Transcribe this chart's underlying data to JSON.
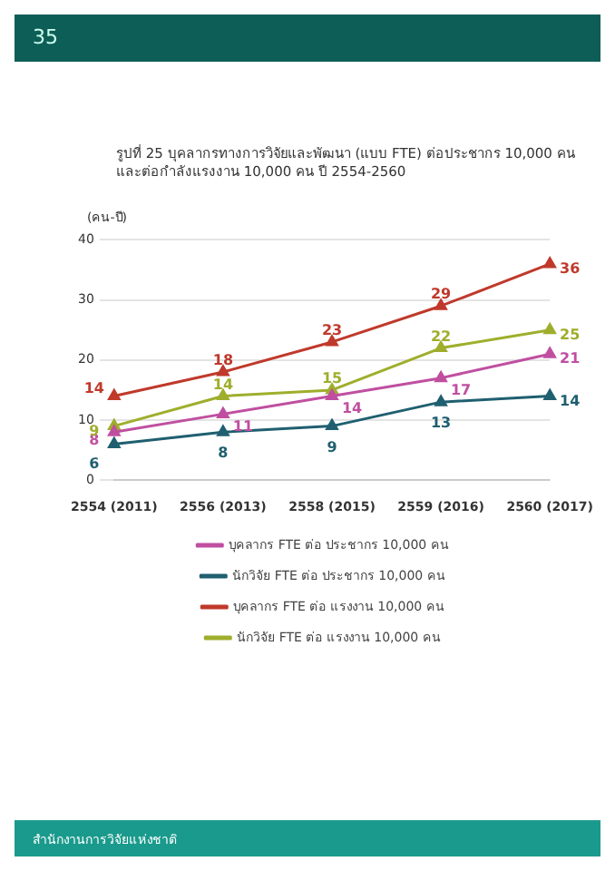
{
  "chart_data": {
    "type": "line",
    "title": "รูปที่ 25 บุคลากรทางการวิจัยและพัฒนา (แบบ FTE) ต่อประชากร 10,000 คน และต่อกำลังแรงงาน 10,000 คน ปี 2554-2560",
    "ylabel": "(คน-ปี)",
    "categories": [
      "2554 (2011)",
      "2556 (2013)",
      "2558 (2015)",
      "2559 (2016)",
      "2560 (2017)"
    ],
    "series": [
      {
        "name": "บุคลากร FTE ต่อ ประชากร 10,000 คน",
        "color": "#c04fa0",
        "values": [
          8,
          11,
          14,
          17,
          21
        ]
      },
      {
        "name": "นักวิจัย FTE ต่อ ประชากร 10,000 คน",
        "color": "#1f5f70",
        "values": [
          6,
          8,
          9,
          13,
          14
        ]
      },
      {
        "name": "บุคลากร FTE ต่อ แรงงาน 10,000 คน",
        "color": "#c0392b",
        "values": [
          14,
          18,
          23,
          29,
          36
        ]
      },
      {
        "name": "นักวิจัย FTE ต่อ แรงงาน 10,000 คน",
        "color": "#9fae2c",
        "values": [
          9,
          14,
          15,
          22,
          25
        ]
      }
    ],
    "ylim": [
      0,
      40
    ],
    "yticks": [
      0,
      10,
      20,
      30,
      40
    ],
    "grid": "y",
    "legend": "bottom",
    "marker": "triangle",
    "line_style": "solid",
    "data_labels": true,
    "annotations": [
      "35",
      "สำนักงานการวิจัยแห่งชาติ"
    ]
  }
}
